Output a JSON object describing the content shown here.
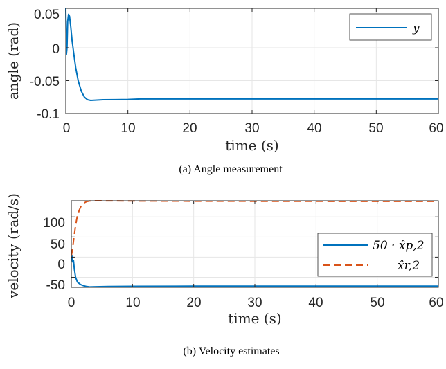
{
  "chart_data": [
    {
      "type": "line",
      "caption": "(a) Angle measurement",
      "xlabel": "time (s)",
      "ylabel": "angle (rad)",
      "xlim": [
        0,
        60
      ],
      "ylim": [
        -0.1,
        0.06
      ],
      "xticks": [
        "0",
        "10",
        "20",
        "30",
        "40",
        "50",
        "60"
      ],
      "yticks": [
        "0.05",
        "0",
        "-0.05",
        "-0.1"
      ],
      "grid": true,
      "legend_position": "top-right",
      "series": [
        {
          "name": "y",
          "color": "#0072BD",
          "style": "solid",
          "x": [
            0,
            0.1,
            0.2,
            0.3,
            0.45,
            0.6,
            0.8,
            1.0,
            1.3,
            1.6,
            2.0,
            2.5,
            3.0,
            3.5,
            4.0,
            5,
            6,
            8,
            10,
            12,
            20,
            30,
            40,
            50,
            60
          ],
          "y": [
            0.06,
            -0.01,
            0.0,
            0.04,
            0.051,
            0.048,
            0.032,
            0.012,
            -0.01,
            -0.03,
            -0.05,
            -0.066,
            -0.075,
            -0.079,
            -0.08,
            -0.0795,
            -0.079,
            -0.0788,
            -0.0785,
            -0.0778,
            -0.0778,
            -0.0778,
            -0.0778,
            -0.0778,
            -0.0778
          ]
        }
      ]
    },
    {
      "type": "line",
      "caption": "(b) Velocity estimates",
      "xlabel": "time (s)",
      "ylabel": "velocity (rad/s)",
      "xlim": [
        0,
        60
      ],
      "ylim": [
        -75,
        140
      ],
      "xticks": [
        "0",
        "10",
        "20",
        "30",
        "40",
        "50",
        "60"
      ],
      "yticks": [
        "100",
        "50",
        "0",
        "-50"
      ],
      "grid": true,
      "legend_position": "right",
      "series": [
        {
          "name": "50 · x̂p,2",
          "color": "#0072BD",
          "style": "solid",
          "x": [
            0,
            0.1,
            0.2,
            0.35,
            0.5,
            0.7,
            1.0,
            1.5,
            2.0,
            2.5,
            3.0,
            4,
            6,
            10,
            20,
            30,
            40,
            50,
            60
          ],
          "y": [
            -5,
            3,
            -12,
            -8,
            -30,
            -50,
            -62,
            -68,
            -71,
            -73,
            -74,
            -73.5,
            -73,
            -72.5,
            -72,
            -72,
            -72,
            -72,
            -72
          ]
        },
        {
          "name": "x̂r,2",
          "color": "#D95319",
          "style": "dashed",
          "x": [
            0,
            0.2,
            0.4,
            0.6,
            0.8,
            1.0,
            1.3,
            1.6,
            2.0,
            2.5,
            3.0,
            3.5,
            4,
            6,
            10,
            20,
            30,
            40,
            50,
            60
          ],
          "y": [
            3,
            20,
            45,
            68,
            88,
            103,
            117,
            127,
            134,
            138,
            139.5,
            140,
            140,
            139.8,
            139.5,
            139,
            138.8,
            138.6,
            138.5,
            138.5
          ]
        }
      ]
    }
  ]
}
